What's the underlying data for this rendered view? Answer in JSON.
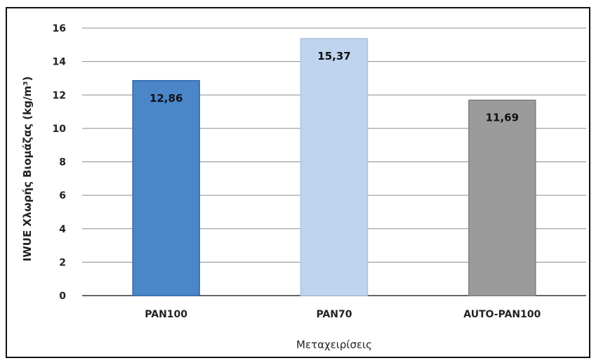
{
  "chart_data": {
    "type": "bar",
    "categories": [
      "PAN100",
      "PAN70",
      "AUTO-PAN100"
    ],
    "values": [
      12.86,
      15.37,
      11.69
    ],
    "value_labels": [
      "12,86",
      "15,37",
      "11,69"
    ],
    "colors": [
      "#4a86c8",
      "#bfd4ee",
      "#9b9b9b"
    ],
    "edge_colors": [
      "#2f6aab",
      "#a9c1de",
      "#808080"
    ],
    "xlabel": "Μεταχειρίσεις",
    "ylabel": "IWUE Χλωρής Βιομάζας (kg/m³)",
    "yticks": [
      0,
      2,
      4,
      6,
      8,
      10,
      12,
      14,
      16
    ],
    "ylim": [
      0,
      16
    ],
    "grid": true,
    "legend": "none"
  }
}
